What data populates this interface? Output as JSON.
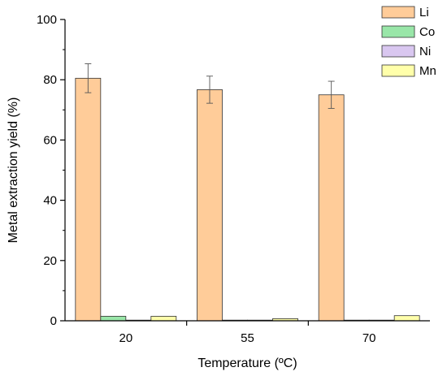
{
  "chart_data": {
    "type": "bar",
    "xlabel": "Temperature (ºC)",
    "ylabel": "Metal extraction yield (%)",
    "categories": [
      "20",
      "55",
      "70"
    ],
    "ylim": [
      0,
      100
    ],
    "yticks": [
      0,
      20,
      40,
      60,
      80,
      100
    ],
    "legend_position": "top-right",
    "series": [
      {
        "name": "Li",
        "color": "#FFCC99",
        "values": [
          80.5,
          76.7,
          75.0
        ],
        "errors": [
          4.8,
          4.5,
          4.5
        ]
      },
      {
        "name": "Co",
        "color": "#99E6A8",
        "values": [
          1.5,
          0.2,
          0.1
        ],
        "errors": [
          0,
          0,
          0
        ]
      },
      {
        "name": "Ni",
        "color": "#D9C7F0",
        "values": [
          0.1,
          0.1,
          0.1
        ],
        "errors": [
          0,
          0,
          0
        ]
      },
      {
        "name": "Mn",
        "color": "#FFFFAA",
        "values": [
          1.5,
          0.7,
          1.7
        ],
        "errors": [
          0,
          0,
          0
        ]
      }
    ]
  }
}
